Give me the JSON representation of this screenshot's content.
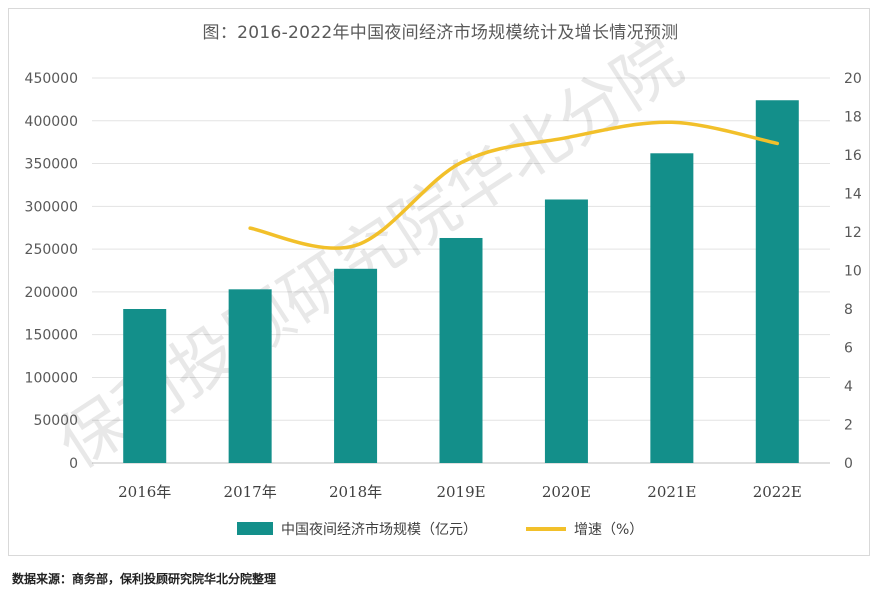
{
  "title": "图：2016-2022年中国夜间经济市场规模统计及增长情况预测",
  "source": "数据来源：商务部，保利投顾研究院华北分院整理",
  "watermark": "保利投顾研究院华北分院",
  "chart_data": {
    "type": "bar",
    "categories": [
      "2016年",
      "2017年",
      "2018年",
      "2019E",
      "2020E",
      "2021E",
      "2022E"
    ],
    "series": [
      {
        "name": "中国夜间经济市场规模（亿元）",
        "type": "bar",
        "axis": "left",
        "color": "#138f8a",
        "values": [
          180000,
          203000,
          227000,
          263000,
          308000,
          362000,
          424000
        ]
      },
      {
        "name": "增速（%）",
        "type": "line",
        "axis": "right",
        "color": "#f2c02a",
        "values": [
          null,
          12.2,
          11.3,
          15.6,
          16.9,
          17.7,
          16.6
        ]
      }
    ],
    "y_left": {
      "min": 0,
      "max": 450000,
      "step": 50000,
      "ticks": [
        "0",
        "50000",
        "100000",
        "150000",
        "200000",
        "250000",
        "300000",
        "350000",
        "400000",
        "450000"
      ]
    },
    "y_right": {
      "min": 0,
      "max": 20,
      "step": 2,
      "ticks": [
        "0",
        "2",
        "4",
        "6",
        "8",
        "10",
        "12",
        "14",
        "16",
        "18",
        "20"
      ]
    },
    "grid": true,
    "legend": "bottom"
  }
}
